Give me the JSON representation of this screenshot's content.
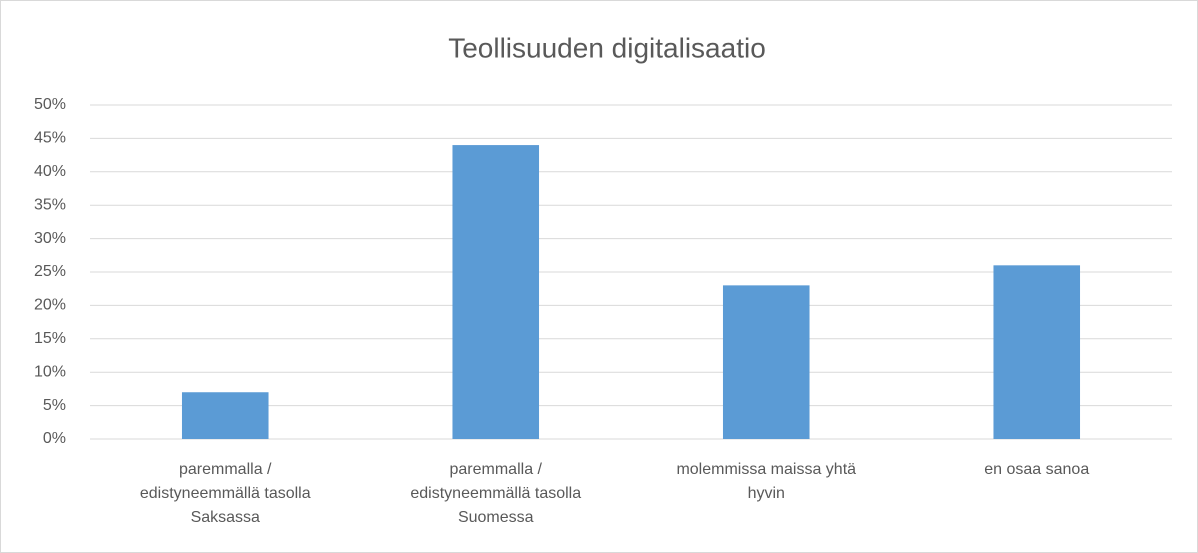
{
  "chart_data": {
    "type": "bar",
    "title": "Teollisuuden digitalisaatio",
    "categories": [
      "paremmalla / edistyneemmällä tasolla Saksassa",
      "paremmalla / edistyneemmällä tasolla Suomessa",
      "molemmissa maissa yhtä hyvin",
      "en osaa sanoa"
    ],
    "values": [
      7,
      44,
      23,
      26
    ],
    "color": "#5b9bd5",
    "ylim": [
      0,
      50
    ],
    "yticks": [
      {
        "value": 0,
        "label": "0%"
      },
      {
        "value": 5,
        "label": "5%"
      },
      {
        "value": 10,
        "label": "10%"
      },
      {
        "value": 15,
        "label": "15%"
      },
      {
        "value": 20,
        "label": "20%"
      },
      {
        "value": 25,
        "label": "25%"
      },
      {
        "value": 30,
        "label": "30%"
      },
      {
        "value": 35,
        "label": "35%"
      },
      {
        "value": 40,
        "label": "40%"
      },
      {
        "value": 45,
        "label": "45%"
      },
      {
        "value": 50,
        "label": "50%"
      }
    ],
    "grid": true
  }
}
